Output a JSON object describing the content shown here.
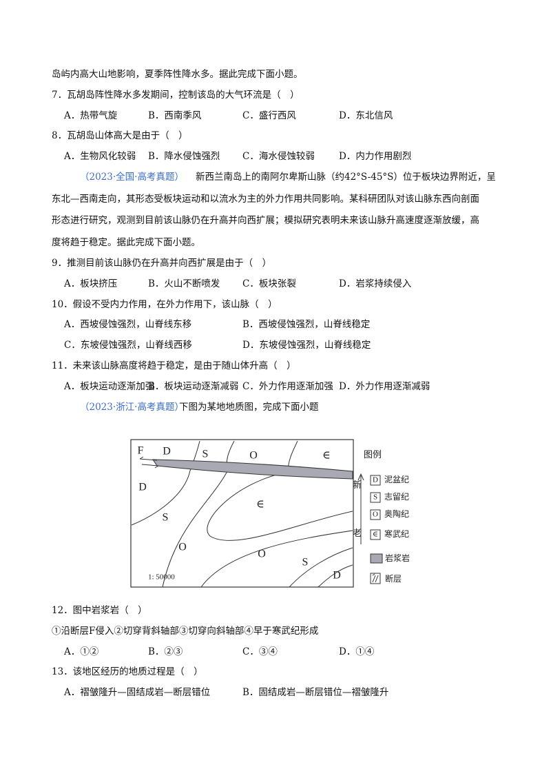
{
  "section1": {
    "intro_tail": "岛屿内高大山地影响，夏季阵性降水多。据此完成下面小题。",
    "questions": [
      {
        "stem": "7．瓦胡岛阵性降水多发期间，控制该岛的大气环流是（　）",
        "options": [
          "A．热带气旋",
          "B．西南季风",
          "C．盛行西风",
          "D．东北信风"
        ]
      },
      {
        "stem": "8．瓦胡岛山体高大是由于（　）",
        "options": [
          "A．生物风化较弱",
          "B．降水侵蚀强烈",
          "C．海水侵蚀较弱",
          "D．内力作用剧烈"
        ]
      }
    ]
  },
  "section2": {
    "source": "（2023·全国·高考真题）",
    "lines": [
      "新西兰南岛上的南阿尔卑斯山脉（约42°S-45°S）位于板块边界附近，呈",
      "东北—西南走向，其形态受板块运动和以流水为主的外力作用共同影响。某科研团队对该山脉东西向剖面",
      "形态进行研究，观测到目前该山脉仍在升高并向西扩展；模拟研究表明未来该山脉升高速度逐渐放缓，高",
      "度将趋于稳定。据此完成下面小题。"
    ],
    "questions": [
      {
        "stem": "9．推测目前该山脉仍在升高并向西扩展是由于（　）",
        "options": [
          "A．板块挤压",
          "B．火山不断喷发",
          "C．板块张裂",
          "D．岩浆持续侵入"
        ]
      },
      {
        "stem": "10．假设不受内力作用，在外力作用下，该山脉（　）",
        "options": [
          "A．西坡侵蚀强烈，山脊线东移",
          "B．西坡侵蚀强烈，山脊线稳定",
          "C．东坡侵蚀强烈，山脊线西移",
          "D．东坡侵蚀强烈，山脊线稳定"
        ]
      },
      {
        "stem": "11．未来该山脉高度将趋于稳定，是由于随山体升高（　）",
        "options": [
          "A．板块运动逐渐加强",
          "B．板块运动逐渐减弱",
          "C．外力作用逐渐加强",
          "D．外力作用逐渐减弱"
        ]
      }
    ]
  },
  "section3": {
    "source": "（2023·浙江·高考真题）",
    "text": "下图为某地地质图，完成下面小题",
    "figure": {
      "map_labels": [
        "F",
        "D",
        "S",
        "O",
        "∈",
        "D",
        "∈",
        "S",
        "O",
        "O",
        "S",
        "D"
      ],
      "scale": "1: 50000",
      "legend_title": "图例",
      "newer": "新",
      "older": "老",
      "legend": [
        {
          "symbol": "D",
          "label": "泥盆纪"
        },
        {
          "symbol": "S",
          "label": "志留纪"
        },
        {
          "symbol": "O",
          "label": "奥陶纪"
        },
        {
          "symbol": "∈",
          "label": "寒武纪"
        }
      ],
      "magma": "岩浆岩",
      "fault": "断层"
    },
    "questions": [
      {
        "stem": "12．图中岩浆岩（　）",
        "statements": "①沿断层F侵入②切穿背斜轴部③切穿向斜轴部④早于寒武纪形成",
        "options": [
          "A．①②",
          "B．②③",
          "C．③④",
          "D．①④"
        ]
      },
      {
        "stem": "13．该地区经历的地质过程是（　）",
        "options": [
          "A．褶皱隆升—固结成岩—断层错位",
          "B．固结成岩—断层错位—褶皱隆升"
        ]
      }
    ]
  }
}
